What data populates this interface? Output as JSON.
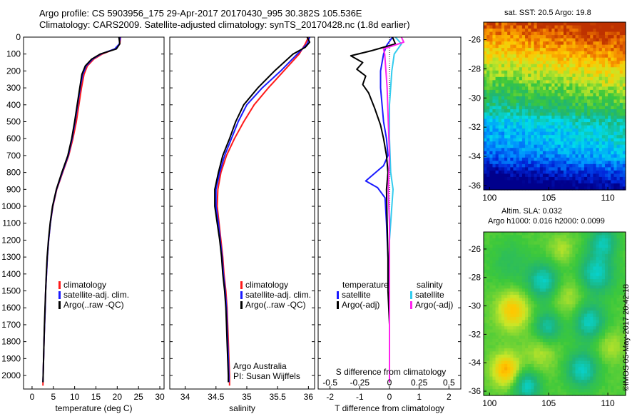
{
  "header": {
    "line1": "Argo profile: CS 5903956_175 29-Apr-2017 20170430_995 30.382S 105.536E",
    "line2": "Climatology: CARS2009. Satellite-adjusted climatology: synTS_20170428.nc (1.8d earlier)"
  },
  "colors": {
    "climatology": "#ff1a1a",
    "satellite": "#1a1aff",
    "argo": "#000000",
    "sat_salinity": "#33ccee",
    "argo_salinity": "#ff22ee",
    "zero_line": "#000000"
  },
  "chart_data": [
    {
      "type": "line",
      "name": "temperature-profile",
      "xlabel": "temperature (deg C)",
      "ylabel": "depth",
      "xlim": [
        -2,
        31
      ],
      "ylim": [
        2080,
        0
      ],
      "xticks": [
        "0",
        "5",
        "10",
        "15",
        "20",
        "25",
        "30"
      ],
      "xtick_values": [
        0,
        5,
        10,
        15,
        20,
        25,
        30
      ],
      "yticks": [
        "0",
        "100",
        "200",
        "300",
        "400",
        "500",
        "600",
        "700",
        "800",
        "900",
        "1000",
        "1100",
        "1200",
        "1300",
        "1400",
        "1500",
        "1600",
        "1700",
        "1800",
        "1900",
        "2000"
      ],
      "ytick_values": [
        0,
        100,
        200,
        300,
        400,
        500,
        600,
        700,
        800,
        900,
        1000,
        1100,
        1200,
        1300,
        1400,
        1500,
        1600,
        1700,
        1800,
        1900,
        2000
      ],
      "legend": [
        "climatology",
        "satellite-adj. clim.",
        "Argo(..raw -QC)"
      ],
      "series": [
        {
          "name": "climatology",
          "color_key": "climatology",
          "points": [
            [
              20.8,
              0
            ],
            [
              20.6,
              40
            ],
            [
              19.5,
              70
            ],
            [
              16.5,
              100
            ],
            [
              14.5,
              130
            ],
            [
              13.0,
              170
            ],
            [
              12.2,
              220
            ],
            [
              11.6,
              300
            ],
            [
              11.0,
              400
            ],
            [
              10.4,
              500
            ],
            [
              9.6,
              600
            ],
            [
              8.6,
              700
            ],
            [
              7.2,
              800
            ],
            [
              5.8,
              900
            ],
            [
              4.9,
              1000
            ],
            [
              4.3,
              1100
            ],
            [
              3.9,
              1200
            ],
            [
              3.6,
              1300
            ],
            [
              3.4,
              1400
            ],
            [
              3.2,
              1500
            ],
            [
              3.1,
              1600
            ],
            [
              2.95,
              1700
            ],
            [
              2.8,
              1800
            ],
            [
              2.7,
              1900
            ],
            [
              2.6,
              2000
            ],
            [
              2.55,
              2060
            ]
          ]
        },
        {
          "name": "satellite",
          "color_key": "satellite",
          "points": [
            [
              20.7,
              0
            ],
            [
              20.5,
              40
            ],
            [
              19.4,
              70
            ],
            [
              16.2,
              100
            ],
            [
              14.2,
              130
            ],
            [
              12.7,
              170
            ],
            [
              11.9,
              220
            ],
            [
              11.3,
              300
            ],
            [
              10.7,
              400
            ],
            [
              10.1,
              500
            ],
            [
              9.4,
              600
            ],
            [
              8.5,
              700
            ],
            [
              7.1,
              800
            ],
            [
              5.75,
              900
            ],
            [
              4.85,
              1000
            ],
            [
              4.3,
              1100
            ],
            [
              3.9,
              1200
            ],
            [
              3.6,
              1300
            ],
            [
              3.4,
              1400
            ],
            [
              3.2,
              1500
            ],
            [
              3.1,
              1600
            ],
            [
              2.95,
              1700
            ],
            [
              2.8,
              1800
            ],
            [
              2.7,
              1900
            ],
            [
              2.6,
              2000
            ],
            [
              2.55,
              2040
            ]
          ]
        },
        {
          "name": "argo",
          "color_key": "argo",
          "points": [
            [
              20.4,
              0
            ],
            [
              20.6,
              40
            ],
            [
              19.8,
              70
            ],
            [
              16.0,
              100
            ],
            [
              14.0,
              130
            ],
            [
              12.5,
              170
            ],
            [
              11.7,
              220
            ],
            [
              11.2,
              300
            ],
            [
              10.6,
              400
            ],
            [
              10.0,
              500
            ],
            [
              9.3,
              600
            ],
            [
              8.4,
              700
            ],
            [
              7.0,
              800
            ],
            [
              5.7,
              900
            ],
            [
              4.8,
              1000
            ],
            [
              4.25,
              1100
            ],
            [
              3.85,
              1200
            ],
            [
              3.55,
              1300
            ],
            [
              3.35,
              1400
            ],
            [
              3.2,
              1500
            ],
            [
              3.05,
              1600
            ],
            [
              2.9,
              1700
            ],
            [
              2.8,
              1800
            ],
            [
              2.7,
              1900
            ],
            [
              2.6,
              2000
            ],
            [
              2.55,
              2040
            ]
          ]
        }
      ]
    },
    {
      "type": "line",
      "name": "salinity-profile",
      "xlabel": "salinity",
      "xlim": [
        33.75,
        36.1
      ],
      "ylim": [
        2080,
        0
      ],
      "xticks": [
        "34",
        "34.5",
        "35",
        "35.5",
        "36"
      ],
      "xtick_values": [
        34,
        34.5,
        35,
        35.5,
        36
      ],
      "legend": [
        "climatology",
        "satellite-adj. clim.",
        "Argo(..raw -QC)"
      ],
      "annotations": [
        "Argo Australia",
        "PI: Susan Wijffels"
      ],
      "series": [
        {
          "name": "climatology",
          "color_key": "climatology",
          "points": [
            [
              36.0,
              0
            ],
            [
              35.95,
              40
            ],
            [
              35.85,
              100
            ],
            [
              35.6,
              200
            ],
            [
              35.35,
              300
            ],
            [
              35.12,
              400
            ],
            [
              34.95,
              500
            ],
            [
              34.8,
              600
            ],
            [
              34.67,
              700
            ],
            [
              34.58,
              800
            ],
            [
              34.53,
              900
            ],
            [
              34.52,
              1000
            ],
            [
              34.55,
              1100
            ],
            [
              34.58,
              1200
            ],
            [
              34.61,
              1300
            ],
            [
              34.63,
              1400
            ],
            [
              34.66,
              1500
            ],
            [
              34.68,
              1600
            ],
            [
              34.69,
              1700
            ],
            [
              34.7,
              1800
            ],
            [
              34.71,
              1900
            ],
            [
              34.72,
              2000
            ],
            [
              34.72,
              2060
            ]
          ]
        },
        {
          "name": "satellite",
          "color_key": "satellite",
          "points": [
            [
              36.02,
              0
            ],
            [
              35.98,
              40
            ],
            [
              35.82,
              100
            ],
            [
              35.55,
              200
            ],
            [
              35.25,
              300
            ],
            [
              35.0,
              400
            ],
            [
              34.86,
              500
            ],
            [
              34.75,
              600
            ],
            [
              34.64,
              700
            ],
            [
              34.56,
              800
            ],
            [
              34.5,
              900
            ],
            [
              34.5,
              1000
            ],
            [
              34.54,
              1100
            ],
            [
              34.57,
              1200
            ],
            [
              34.6,
              1300
            ],
            [
              34.62,
              1400
            ],
            [
              34.65,
              1500
            ],
            [
              34.67,
              1600
            ],
            [
              34.68,
              1700
            ],
            [
              34.69,
              1800
            ],
            [
              34.7,
              1900
            ],
            [
              34.71,
              2000
            ],
            [
              34.71,
              2040
            ]
          ]
        },
        {
          "name": "argo",
          "color_key": "argo",
          "points": [
            [
              35.98,
              0
            ],
            [
              36.02,
              30
            ],
            [
              35.95,
              60
            ],
            [
              35.75,
              100
            ],
            [
              35.45,
              200
            ],
            [
              35.18,
              300
            ],
            [
              34.95,
              400
            ],
            [
              34.82,
              500
            ],
            [
              34.72,
              600
            ],
            [
              34.61,
              700
            ],
            [
              34.54,
              800
            ],
            [
              34.48,
              900
            ],
            [
              34.48,
              1000
            ],
            [
              34.52,
              1100
            ],
            [
              34.56,
              1200
            ],
            [
              34.59,
              1300
            ],
            [
              34.61,
              1400
            ],
            [
              34.64,
              1500
            ],
            [
              34.66,
              1600
            ],
            [
              34.67,
              1700
            ],
            [
              34.68,
              1800
            ],
            [
              34.69,
              1900
            ],
            [
              34.7,
              2000
            ],
            [
              34.7,
              2040
            ]
          ]
        }
      ]
    },
    {
      "type": "line",
      "name": "difference-profile",
      "xlabel": "T difference from climatology",
      "xlabel_top": "S difference from climatology",
      "xlim": [
        -2.4,
        2.4
      ],
      "ylim": [
        2080,
        0
      ],
      "xticks": [
        "-2",
        "-1",
        "0",
        "1",
        "2"
      ],
      "xtick_values": [
        -2,
        -1,
        0,
        1,
        2
      ],
      "sticks": [
        "-0.5",
        "-0.25",
        "0",
        "0.25",
        "0.5"
      ],
      "stick_values": [
        -0.5,
        -0.25,
        0,
        0.25,
        0.5
      ],
      "s_scale": 0.25,
      "legend_headers": [
        "temperature",
        "salinity"
      ],
      "legend": [
        "satellite",
        "Argo(-adj)",
        "satellite",
        "Argo(-adj)"
      ],
      "series": [
        {
          "name": "T satellite",
          "color_key": "satellite",
          "quantity": "T",
          "points": [
            [
              0.1,
              0
            ],
            [
              -0.1,
              50
            ],
            [
              -0.2,
              100
            ],
            [
              -0.3,
              200
            ],
            [
              -0.3,
              300
            ],
            [
              -0.25,
              400
            ],
            [
              -0.2,
              500
            ],
            [
              -0.1,
              600
            ],
            [
              -0.05,
              700
            ],
            [
              -0.2,
              760
            ],
            [
              -0.8,
              850
            ],
            [
              -0.4,
              890
            ],
            [
              -0.15,
              950
            ],
            [
              -0.1,
              1100
            ],
            [
              -0.05,
              1300
            ],
            [
              0.0,
              1500
            ],
            [
              0.0,
              1700
            ],
            [
              0.0,
              2040
            ]
          ]
        },
        {
          "name": "T argo",
          "color_key": "argo",
          "quantity": "T",
          "points": [
            [
              0.1,
              0
            ],
            [
              0.2,
              40
            ],
            [
              -0.6,
              80
            ],
            [
              -1.3,
              110
            ],
            [
              -0.9,
              150
            ],
            [
              -1.1,
              190
            ],
            [
              -0.8,
              230
            ],
            [
              -0.9,
              280
            ],
            [
              -0.7,
              330
            ],
            [
              -0.5,
              420
            ],
            [
              -0.3,
              520
            ],
            [
              -0.2,
              600
            ],
            [
              -0.1,
              700
            ],
            [
              -0.05,
              800
            ],
            [
              -0.1,
              900
            ],
            [
              -0.08,
              1100
            ],
            [
              -0.05,
              1300
            ],
            [
              -0.05,
              1500
            ],
            [
              0.0,
              1700
            ],
            [
              0.0,
              2040
            ]
          ]
        },
        {
          "name": "S satellite",
          "color_key": "sat_salinity",
          "quantity": "S",
          "points": [
            [
              0.05,
              0
            ],
            [
              0.1,
              40
            ],
            [
              0.04,
              100
            ],
            [
              0.02,
              200
            ],
            [
              0.0,
              400
            ],
            [
              0.0,
              600
            ],
            [
              0.01,
              800
            ],
            [
              0.03,
              900
            ],
            [
              0.02,
              1000
            ],
            [
              0.0,
              1200
            ],
            [
              0.0,
              1500
            ],
            [
              0.0,
              2040
            ]
          ]
        },
        {
          "name": "S argo",
          "color_key": "argo_salinity",
          "quantity": "S",
          "points": [
            [
              0.1,
              0
            ],
            [
              0.12,
              30
            ],
            [
              -0.05,
              70
            ],
            [
              -0.04,
              100
            ],
            [
              -0.03,
              200
            ],
            [
              -0.02,
              300
            ],
            [
              -0.01,
              500
            ],
            [
              0.0,
              700
            ],
            [
              -0.01,
              900
            ],
            [
              0.0,
              1100
            ],
            [
              0.0,
              1500
            ],
            [
              0.0,
              2040
            ]
          ]
        }
      ]
    },
    {
      "type": "heatmap",
      "name": "sst-map",
      "title": "sat. SST: 20.5  Argo: 19.8",
      "xlim": [
        99.5,
        111.5
      ],
      "ylim": [
        -36.3,
        -24.8
      ],
      "xticks": [
        "100",
        "105",
        "110"
      ],
      "xtick_values": [
        100,
        105,
        110
      ],
      "yticks": [
        "-26",
        "-28",
        "-30",
        "-32",
        "-34",
        "-36"
      ],
      "ytick_values": [
        -26,
        -28,
        -30,
        -32,
        -34,
        -36
      ]
    },
    {
      "type": "heatmap",
      "name": "sla-map",
      "title": "Altim. SLA: 0.032",
      "subtitle": "Argo h1000: 0.016 h2000: 0.0099",
      "xlim": [
        99.5,
        111.5
      ],
      "ylim": [
        -36.3,
        -24.8
      ],
      "xticks": [
        "100",
        "105",
        "110"
      ],
      "xtick_values": [
        100,
        105,
        110
      ],
      "yticks": [
        "-26",
        "-28",
        "-30",
        "-32",
        "-34",
        "-36"
      ],
      "ytick_values": [
        -26,
        -28,
        -30,
        -32,
        -34,
        -36
      ]
    }
  ],
  "stamp": "©IMOS 05-May-2017 20:42:18"
}
